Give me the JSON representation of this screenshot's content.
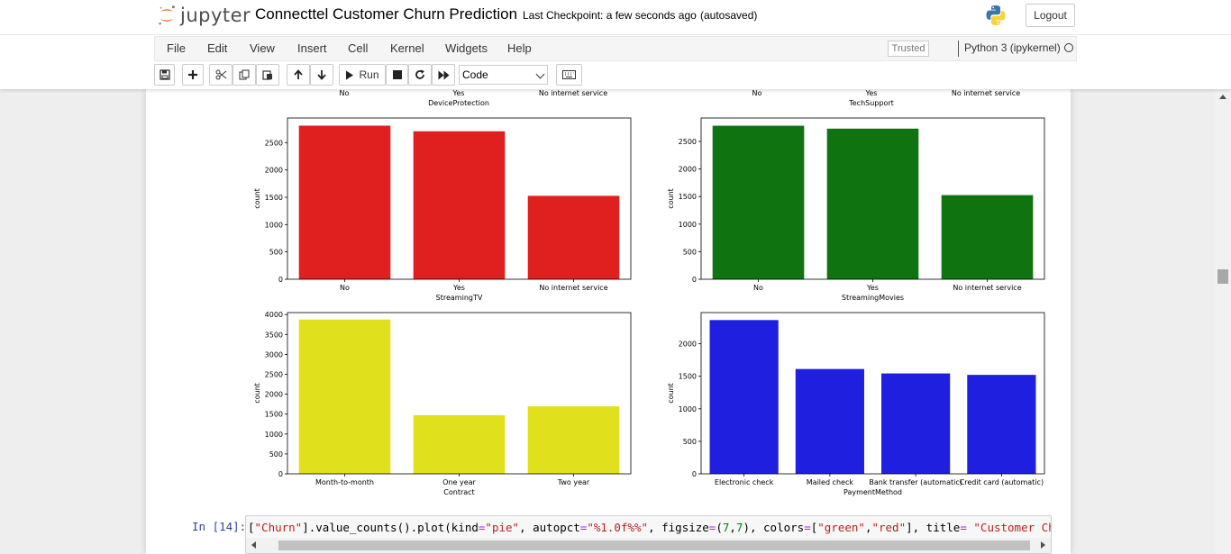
{
  "header": {
    "logo_text": "jupyter",
    "notebook_title": "Connecttel Customer Churn Prediction",
    "checkpoint": "Last Checkpoint: a few seconds ago",
    "autosave_status": "(autosaved)",
    "logout_label": "Logout"
  },
  "menu": {
    "items": [
      "File",
      "Edit",
      "View",
      "Insert",
      "Cell",
      "Kernel",
      "Widgets",
      "Help"
    ],
    "trusted": "Trusted",
    "kernel_name": "Python 3 (ipykernel)"
  },
  "toolbar": {
    "run_label": "Run",
    "cell_type": "Code",
    "icons": [
      "save-icon",
      "plus-icon",
      "cut-icon",
      "copy-icon",
      "paste-icon",
      "arrow-up-icon",
      "arrow-down-icon",
      "play-icon",
      "stop-icon",
      "restart-icon",
      "fast-forward-icon",
      "keyboard-icon"
    ]
  },
  "top_fragment": {
    "left": {
      "ticks": [
        "No",
        "Yes",
        "No internet service"
      ],
      "xlabel": "DeviceProtection"
    },
    "right": {
      "ticks": [
        "No",
        "Yes",
        "No internet service"
      ],
      "xlabel": "TechSupport"
    }
  },
  "chart_data": [
    {
      "type": "bar",
      "categories": [
        "No",
        "Yes",
        "No internet service"
      ],
      "values": [
        2810,
        2707,
        1526
      ],
      "xlabel": "StreamingTV",
      "ylabel": "count",
      "ylim": [
        0,
        2950
      ],
      "yticks": [
        0,
        500,
        1000,
        1500,
        2000,
        2500
      ],
      "color": "#e01f1f"
    },
    {
      "type": "bar",
      "categories": [
        "No",
        "Yes",
        "No internet service"
      ],
      "values": [
        2785,
        2732,
        1526
      ],
      "xlabel": "StreamingMovies",
      "ylabel": "count",
      "ylim": [
        0,
        2925
      ],
      "yticks": [
        0,
        500,
        1000,
        1500,
        2000,
        2500
      ],
      "color": "#0f730f"
    },
    {
      "type": "bar",
      "categories": [
        "Month-to-month",
        "One year",
        "Two year"
      ],
      "values": [
        3875,
        1473,
        1695
      ],
      "xlabel": "Contract",
      "ylabel": "count",
      "ylim": [
        0,
        4050
      ],
      "yticks": [
        0,
        500,
        1000,
        1500,
        2000,
        2500,
        3000,
        3500,
        4000
      ],
      "color": "#e0e01c"
    },
    {
      "type": "bar",
      "categories": [
        "Electronic check",
        "Mailed check",
        "Bank transfer (automatic)",
        "Credit card (automatic)"
      ],
      "values": [
        2365,
        1612,
        1544,
        1522
      ],
      "xlabel": "PaymentMethod",
      "ylabel": "count",
      "ylim": [
        0,
        2480
      ],
      "yticks": [
        0,
        500,
        1000,
        1500,
        2000
      ],
      "color": "#1f1fe0"
    }
  ],
  "cell": {
    "prompt": "In [14]:",
    "code_parts": {
      "p1": "[",
      "p2": "\"Churn\"",
      "p3": "].value_counts().plot(kind",
      "p4": "=",
      "p5": "\"pie\"",
      "p6": ", autopct",
      "p7": "=",
      "p8": "\"%1.0f%%\"",
      "p9": ", figsize",
      "p10": "=",
      "p11": "(",
      "p12": "7",
      "p13": ",",
      "p14": "7",
      "p15": "), colors",
      "p16": "=",
      "p17": "[",
      "p18": "\"green\"",
      "p19": ",",
      "p20": "\"red\"",
      "p21": "], title",
      "p22": "=",
      "p23": " ",
      "p24": "\"Customer Churn Rate\"",
      "p25": ")"
    }
  }
}
